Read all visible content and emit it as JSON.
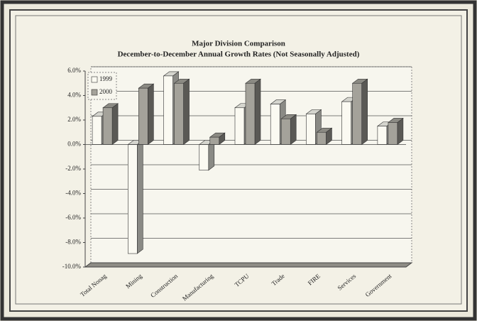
{
  "chart_data": {
    "type": "bar3d",
    "title": "Major Division Comparison",
    "subtitle": "December-to-December Annual Growth Rates (Not Seasonally Adjusted)",
    "categories": [
      "Total Nonag",
      "Mining",
      "Construction",
      "Manufacturing",
      "TCPU",
      "Trade",
      "FIRE",
      "Services",
      "Government"
    ],
    "series": [
      {
        "name": "1999",
        "color": "#fbfaf2",
        "values": [
          2.3,
          -8.9,
          5.6,
          -2.1,
          3.0,
          3.3,
          2.5,
          3.5,
          1.5
        ]
      },
      {
        "name": "2000",
        "color": "#a4a29a",
        "values": [
          3.0,
          4.6,
          5.0,
          0.6,
          5.0,
          2.1,
          1.0,
          5.0,
          1.8
        ]
      }
    ],
    "ylim": [
      -10,
      6
    ],
    "yticks": [
      {
        "value": 6,
        "label": "6.0%"
      },
      {
        "value": 4,
        "label": "4.0%"
      },
      {
        "value": 2,
        "label": "2.0%"
      },
      {
        "value": 0,
        "label": "0.0%"
      },
      {
        "value": -2,
        "label": "-2.0%"
      },
      {
        "value": -4,
        "label": "-4.0%"
      },
      {
        "value": -6,
        "label": "-6.0%"
      },
      {
        "value": -8,
        "label": "-8.0%"
      },
      {
        "value": -10,
        "label": "-10.0%"
      }
    ],
    "grid": true,
    "legend": "top-left"
  }
}
